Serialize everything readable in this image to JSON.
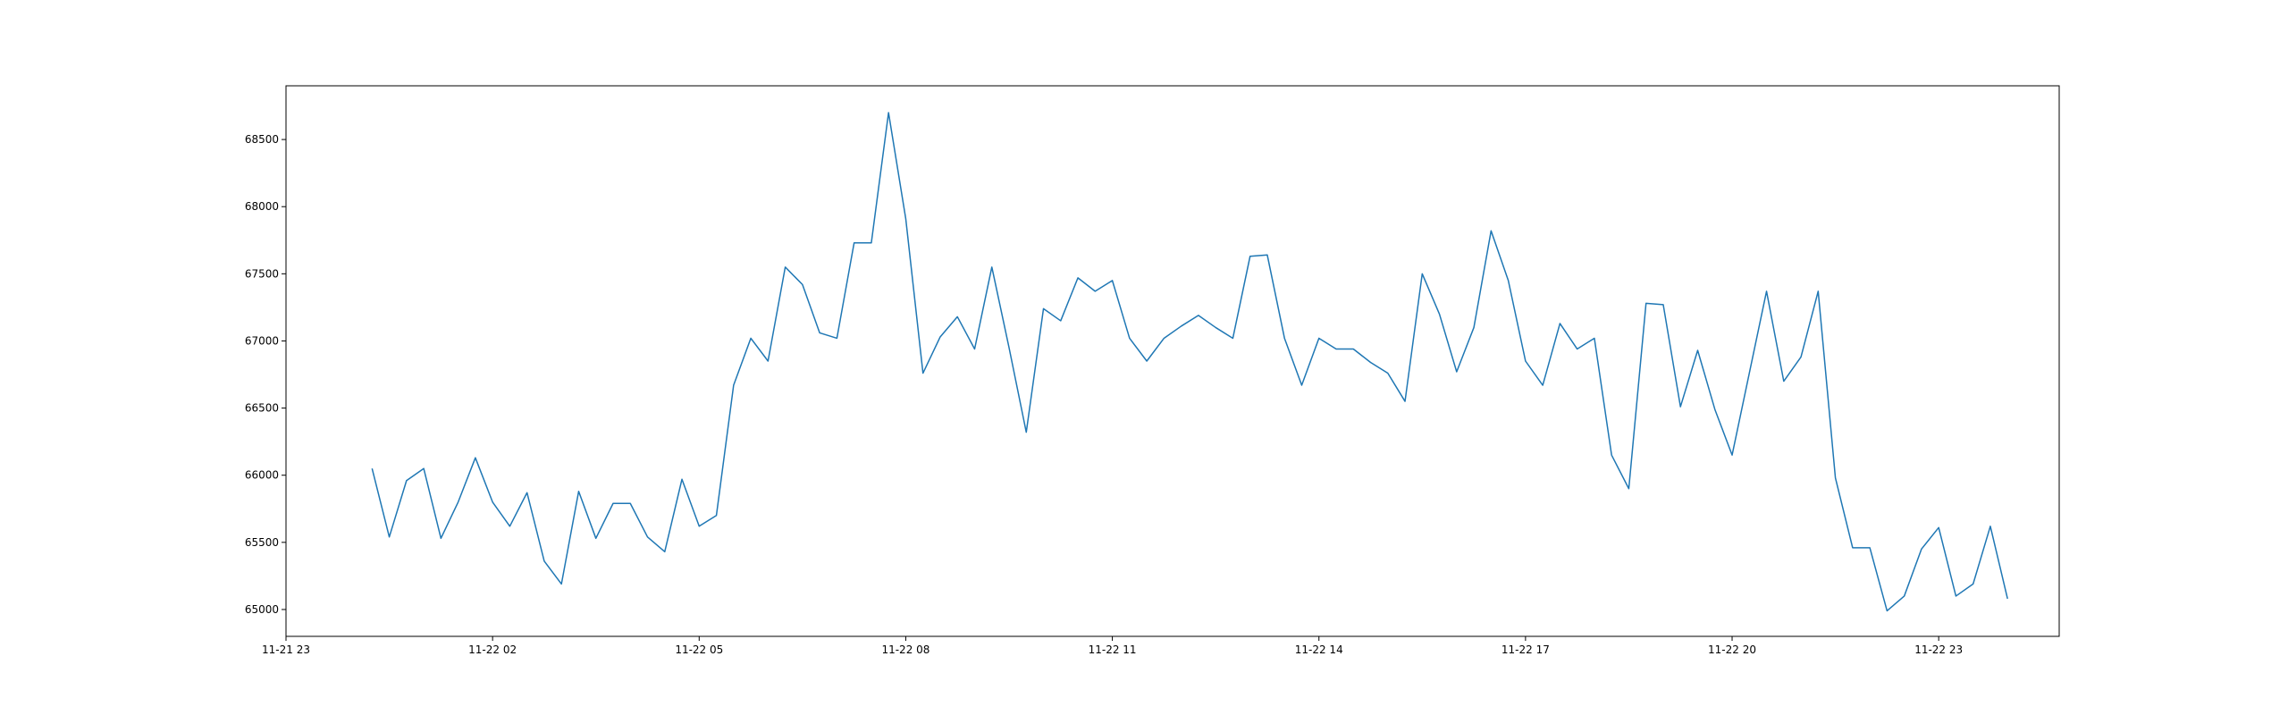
{
  "chart_data": {
    "type": "line",
    "title": "",
    "xlabel": "",
    "ylabel": "",
    "x_start": "2024-11-22 00:15",
    "x_step_minutes": 15,
    "x_tick_labels": [
      "11-21 23",
      "11-22 02",
      "11-22 05",
      "11-22 08",
      "11-22 11",
      "11-22 14",
      "11-22 17",
      "11-22 20",
      "11-22 23"
    ],
    "xlim": [
      "2024-11-21 23:00",
      "2024-11-23 00:45"
    ],
    "y_ticks": [
      65000,
      65500,
      66000,
      66500,
      67000,
      67500,
      68000,
      68500
    ],
    "ylim": [
      64800,
      68900
    ],
    "grid": false,
    "line_color": "#1f77b4",
    "series": [
      {
        "name": "",
        "values": [
          66050,
          65540,
          65960,
          66050,
          65530,
          65800,
          66130,
          65800,
          65620,
          65870,
          65360,
          65190,
          65880,
          65530,
          65790,
          65790,
          65540,
          65430,
          65970,
          65620,
          65700,
          66670,
          67020,
          66850,
          67550,
          67420,
          67060,
          67020,
          67730,
          67730,
          68700,
          67910,
          66760,
          67030,
          67180,
          66940,
          67550,
          66950,
          66320,
          67240,
          67150,
          67470,
          67370,
          67450,
          67020,
          66850,
          67020,
          67110,
          67190,
          67100,
          67020,
          67630,
          67640,
          67020,
          66670,
          67020,
          66940,
          66940,
          66840,
          66760,
          66550,
          67500,
          67200,
          66770,
          67100,
          67820,
          67450,
          66850,
          66670,
          67130,
          66940,
          67020,
          66150,
          65900,
          67280,
          67270,
          66510,
          66930,
          66490,
          66150,
          66760,
          67370,
          66700,
          66880,
          67370,
          65980,
          65460,
          65460,
          64990,
          65100,
          65450,
          65610,
          65100,
          65190,
          65620,
          65080
        ]
      }
    ]
  }
}
